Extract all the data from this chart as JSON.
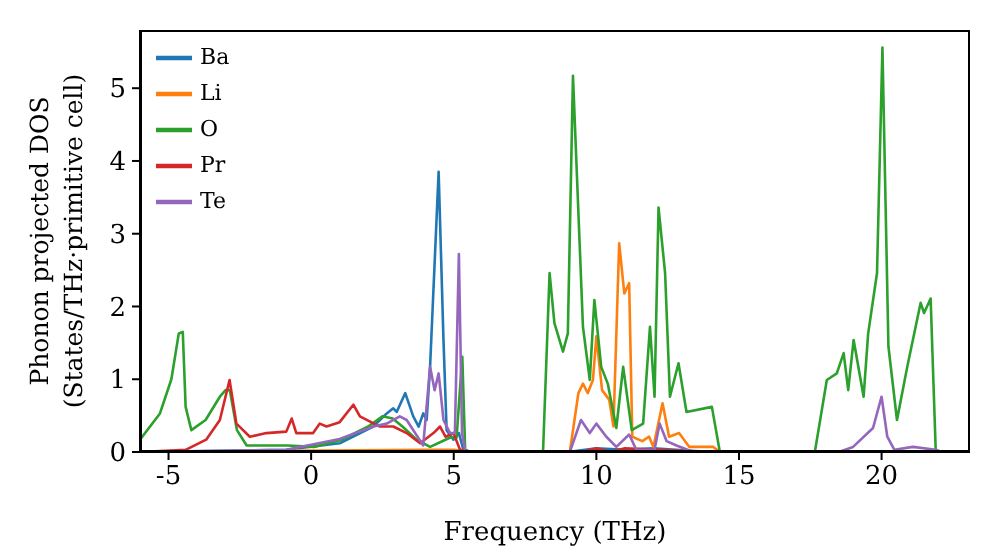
{
  "chart_data": {
    "type": "line",
    "xlabel": "Frequency (THz)",
    "ylabel": "Phonon projected DOS\n(States/THz·primitive cell)",
    "xlim": [
      -6,
      23.1
    ],
    "ylim": [
      0,
      5.8
    ],
    "xticks": [
      -5,
      0,
      5,
      10,
      15,
      20
    ],
    "yticks": [
      0,
      1,
      2,
      3,
      4,
      5
    ],
    "legend": "top left",
    "series": [
      {
        "name": "Ba",
        "color": "#1f77b4",
        "x": [
          -6,
          -0.87,
          1.0,
          2.18,
          2.65,
          2.88,
          3.0,
          3.3,
          3.58,
          3.77,
          3.93,
          4.05,
          4.17,
          4.47,
          4.64,
          4.75,
          4.99,
          5.18,
          5.34,
          5.6,
          9.0,
          10.0,
          11.0,
          12.0,
          14.0,
          22.0
        ],
        "values": [
          0,
          0.03,
          0.12,
          0.35,
          0.53,
          0.6,
          0.55,
          0.81,
          0.49,
          0.35,
          0.53,
          0.44,
          1.17,
          3.85,
          1.54,
          0.3,
          0.17,
          0.26,
          0.03,
          0,
          0,
          0.05,
          0.03,
          0.05,
          0,
          0
        ]
      },
      {
        "name": "Li",
        "color": "#ff7f0e",
        "x": [
          -6,
          4.0,
          5.0,
          5.6,
          9.07,
          9.37,
          9.53,
          9.7,
          9.88,
          10.0,
          10.2,
          10.45,
          10.6,
          10.8,
          10.98,
          11.15,
          11.26,
          11.61,
          11.85,
          12.0,
          12.32,
          12.55,
          12.9,
          13.26,
          14.1,
          14.33,
          22.0
        ],
        "values": [
          0,
          0.03,
          0.03,
          0,
          0,
          0.81,
          0.94,
          0.81,
          0.99,
          1.59,
          0.85,
          0.72,
          0.35,
          2.87,
          2.18,
          2.32,
          0.21,
          0.15,
          0.21,
          0.07,
          0.67,
          0.21,
          0.26,
          0.07,
          0.07,
          0,
          0
        ]
      },
      {
        "name": "O",
        "color": "#2ca02c",
        "x": [
          -6,
          -5.3,
          -4.9,
          -4.64,
          -4.5,
          -4.4,
          -4.2,
          -3.7,
          -3.2,
          -3.0,
          -2.85,
          -2.6,
          -2.26,
          -0.83,
          0.1,
          1.07,
          2.0,
          2.5,
          2.86,
          3.2,
          3.7,
          4.17,
          4.88,
          5.1,
          5.3,
          5.4,
          5.6,
          8.13,
          8.36,
          8.53,
          8.83,
          9.0,
          9.18,
          9.53,
          9.77,
          9.93,
          10.17,
          10.4,
          10.7,
          10.94,
          11.24,
          11.64,
          11.88,
          12.04,
          12.18,
          12.41,
          12.58,
          12.88,
          13.16,
          14.05,
          14.33,
          17.66,
          18.08,
          18.43,
          18.67,
          18.83,
          19.02,
          19.37,
          19.53,
          19.84,
          20.03,
          20.24,
          20.54,
          20.9,
          21.37,
          21.49,
          21.72,
          21.9,
          22.0
        ],
        "values": [
          0.17,
          0.53,
          1.0,
          1.63,
          1.65,
          0.62,
          0.3,
          0.44,
          0.76,
          0.85,
          0.85,
          0.3,
          0.09,
          0.09,
          0.07,
          0.17,
          0.35,
          0.49,
          0.46,
          0.35,
          0.17,
          0.07,
          0.2,
          0.2,
          1.31,
          0.03,
          0,
          0,
          2.46,
          1.77,
          1.38,
          1.63,
          5.17,
          1.72,
          0.99,
          2.09,
          1.17,
          0.94,
          0.33,
          1.17,
          0.3,
          0.39,
          1.72,
          0.76,
          3.36,
          2.46,
          0.76,
          1.22,
          0.55,
          0.62,
          0,
          0,
          0.99,
          1.08,
          1.36,
          0.85,
          1.54,
          0.76,
          1.63,
          2.46,
          5.56,
          1.45,
          0.44,
          1.17,
          2.05,
          1.91,
          2.11,
          0,
          0
        ]
      },
      {
        "name": "Pr",
        "color": "#d62728",
        "x": [
          -6,
          -4.4,
          -3.68,
          -3.2,
          -2.86,
          -2.62,
          -2.15,
          -1.57,
          -0.87,
          -0.68,
          -0.52,
          0.07,
          0.3,
          0.54,
          1.0,
          1.48,
          1.71,
          2.41,
          2.88,
          3.35,
          3.82,
          4.29,
          4.52,
          4.71,
          4.99,
          5.22,
          5.6,
          9.5,
          10.0,
          10.5,
          11.0,
          14.0,
          22.0
        ],
        "values": [
          0,
          0.03,
          0.17,
          0.44,
          0.99,
          0.39,
          0.21,
          0.26,
          0.28,
          0.46,
          0.26,
          0.26,
          0.39,
          0.35,
          0.41,
          0.65,
          0.49,
          0.35,
          0.35,
          0.26,
          0.12,
          0.26,
          0.35,
          0.21,
          0.26,
          0.03,
          0,
          0,
          0.05,
          0,
          0.05,
          0,
          0
        ]
      },
      {
        "name": "Te",
        "color": "#9467bd",
        "x": [
          -6,
          -0.87,
          1.0,
          2.18,
          2.65,
          3.11,
          3.35,
          3.93,
          4.17,
          4.33,
          4.47,
          4.64,
          4.87,
          5.04,
          5.18,
          5.29,
          5.41,
          9.07,
          9.46,
          9.77,
          10.0,
          10.35,
          10.7,
          11.15,
          11.4,
          12.04,
          12.22,
          12.46,
          12.81,
          13.4,
          18.5,
          19.0,
          19.7,
          20.0,
          20.2,
          20.45,
          21.1,
          21.9,
          22.1
        ],
        "values": [
          0,
          0.03,
          0.18,
          0.35,
          0.39,
          0.49,
          0.44,
          0.09,
          1.17,
          0.85,
          1.08,
          0.44,
          0.26,
          0.26,
          2.72,
          0.26,
          0,
          0,
          0.44,
          0.26,
          0.39,
          0.21,
          0.07,
          0.24,
          0.03,
          0.03,
          0.39,
          0.15,
          0.09,
          0,
          0,
          0.07,
          0.33,
          0.76,
          0.21,
          0.03,
          0.07,
          0.03,
          0
        ]
      }
    ]
  }
}
